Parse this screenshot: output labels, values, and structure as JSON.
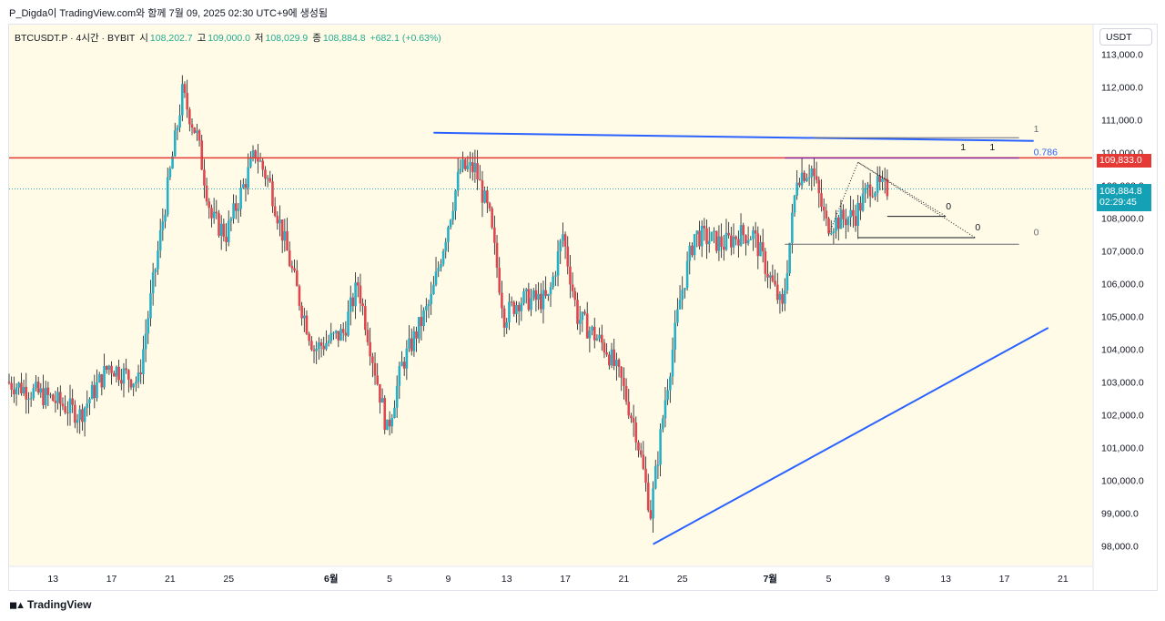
{
  "header": {
    "text": "P_Digda이 TradingView.com와 함께 7월 09, 2025 02:30 UTC+9에 생성됨"
  },
  "symbol_line": {
    "symbol": "BTCUSDT.P · 4시간 · BYBIT",
    "open_label": "시",
    "open": "108,202.7",
    "high_label": "고",
    "high": "109,000.0",
    "low_label": "저",
    "low": "108,029.9",
    "close_label": "종",
    "close": "108,884.8",
    "change": "+682.1 (+0.63%)"
  },
  "price_axis": {
    "currency": "USDT",
    "tick_labels": [
      "113,000.0",
      "112,000.0",
      "111,000.0",
      "110,000.0",
      "109,000.0",
      "108,000.0",
      "107,000.0",
      "106,000.0",
      "105,000.0",
      "104,000.0",
      "103,000.0",
      "102,000.0",
      "101,000.0",
      "100,000.0",
      "99,000.0",
      "98,000.0"
    ],
    "horizontal_level_label": "109,833.0",
    "last_price_label": "108,884.8",
    "countdown": "02:29:45"
  },
  "time_axis": {
    "labels": [
      "13",
      "17",
      "21",
      "25",
      "6월",
      "5",
      "9",
      "13",
      "17",
      "21",
      "25",
      "7월",
      "5",
      "9",
      "13",
      "17",
      "21"
    ]
  },
  "drawing_labels": {
    "fib_top_1": "1",
    "fib_ratio": "0.786",
    "fib_1_a": "1",
    "fib_1_b": "1",
    "fib_0_a": "0",
    "fib_0_b": "0",
    "fib_0_c": "0"
  },
  "colors": {
    "up": "#26b0c8",
    "down": "#e0464e",
    "background": "#fffbe6",
    "trendline": "#2962ff",
    "level": "#e53935"
  },
  "chart_data": {
    "type": "candlestick",
    "title": "BTCUSDT.P · 4시간 · BYBIT",
    "xlabel": "",
    "ylabel": "USDT",
    "ylim": [
      97400,
      113900
    ],
    "x_range": [
      "2025-05-10",
      "2025-07-23"
    ],
    "key_points": [
      {
        "date": "2025-05-10",
        "price": 103000
      },
      {
        "date": "2025-05-13",
        "price": 102500
      },
      {
        "date": "2025-05-15",
        "price": 102000
      },
      {
        "date": "2025-05-17",
        "price": 103500
      },
      {
        "date": "2025-05-19",
        "price": 103000
      },
      {
        "date": "2025-05-20",
        "price": 106000
      },
      {
        "date": "2025-05-22",
        "price": 111800
      },
      {
        "date": "2025-05-23",
        "price": 110500
      },
      {
        "date": "2025-05-24",
        "price": 108000
      },
      {
        "date": "2025-05-25",
        "price": 107500
      },
      {
        "date": "2025-05-27",
        "price": 110000
      },
      {
        "date": "2025-05-28",
        "price": 109000
      },
      {
        "date": "2025-05-30",
        "price": 105500
      },
      {
        "date": "2025-05-31",
        "price": 104000
      },
      {
        "date": "2025-06-02",
        "price": 104500
      },
      {
        "date": "2025-06-03",
        "price": 106000
      },
      {
        "date": "2025-06-05",
        "price": 101500
      },
      {
        "date": "2025-06-06",
        "price": 103500
      },
      {
        "date": "2025-06-08",
        "price": 105500
      },
      {
        "date": "2025-06-10",
        "price": 109500
      },
      {
        "date": "2025-06-11",
        "price": 109500
      },
      {
        "date": "2025-06-12",
        "price": 108000
      },
      {
        "date": "2025-06-13",
        "price": 105000
      },
      {
        "date": "2025-06-14",
        "price": 105500
      },
      {
        "date": "2025-06-16",
        "price": 105500
      },
      {
        "date": "2025-06-17",
        "price": 107500
      },
      {
        "date": "2025-06-18",
        "price": 105000
      },
      {
        "date": "2025-06-20",
        "price": 104000
      },
      {
        "date": "2025-06-21",
        "price": 103000
      },
      {
        "date": "2025-06-22",
        "price": 101500
      },
      {
        "date": "2025-06-23",
        "price": 99000
      },
      {
        "date": "2025-06-24",
        "price": 102500
      },
      {
        "date": "2025-06-25",
        "price": 105500
      },
      {
        "date": "2025-06-26",
        "price": 107500
      },
      {
        "date": "2025-06-28",
        "price": 107200
      },
      {
        "date": "2025-06-29",
        "price": 107500
      },
      {
        "date": "2025-06-30",
        "price": 107500
      },
      {
        "date": "2025-07-02",
        "price": 105200
      },
      {
        "date": "2025-07-03",
        "price": 109300
      },
      {
        "date": "2025-07-04",
        "price": 109500
      },
      {
        "date": "2025-07-05",
        "price": 107800
      },
      {
        "date": "2025-07-07",
        "price": 108100
      },
      {
        "date": "2025-07-08",
        "price": 109000
      },
      {
        "date": "2025-07-09",
        "price": 108884.8
      }
    ],
    "horizontal_level": 109833.0,
    "last_price": 108884.8,
    "trendlines": [
      {
        "from": {
          "date": "2025-06-08",
          "price": 110600
        },
        "to": {
          "date": "2025-07-19",
          "price": 110350
        }
      },
      {
        "from": {
          "date": "2025-06-23",
          "price": 98050
        },
        "to": {
          "date": "2025-07-20",
          "price": 104650
        }
      }
    ],
    "legend": "top-left",
    "grid": false
  }
}
